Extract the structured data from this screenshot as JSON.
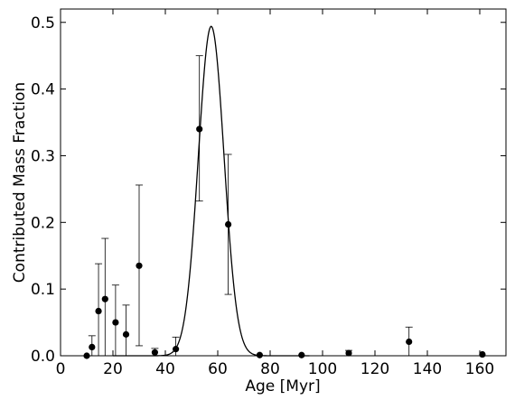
{
  "chart_data": {
    "type": "scatter",
    "xlabel": "Age [Myr]",
    "ylabel": "Contributed Mass Fraction",
    "xlim": [
      0,
      170
    ],
    "ylim": [
      0,
      0.52
    ],
    "x_ticks": [
      0,
      20,
      40,
      60,
      80,
      100,
      120,
      140,
      160
    ],
    "x_tick_labels": [
      "0",
      "20",
      "40",
      "60",
      "80",
      "100",
      "120",
      "140",
      "160"
    ],
    "y_ticks": [
      0.0,
      0.1,
      0.2,
      0.3,
      0.4,
      0.5
    ],
    "y_tick_labels": [
      "0.0",
      "0.1",
      "0.2",
      "0.3",
      "0.4",
      "0.5"
    ],
    "grid": false,
    "legend": "none",
    "colors": {
      "points": "#000000",
      "curve": "#000000",
      "axes": "#000000"
    },
    "points": [
      {
        "x": 10,
        "y": 0.0,
        "yerr_low": 0.0,
        "yerr_high": 0.0
      },
      {
        "x": 12,
        "y": 0.013,
        "yerr_low": 0.013,
        "yerr_high": 0.017
      },
      {
        "x": 14.5,
        "y": 0.067,
        "yerr_low": 0.067,
        "yerr_high": 0.071
      },
      {
        "x": 17,
        "y": 0.085,
        "yerr_low": 0.085,
        "yerr_high": 0.091
      },
      {
        "x": 21,
        "y": 0.05,
        "yerr_low": 0.05,
        "yerr_high": 0.056
      },
      {
        "x": 25,
        "y": 0.032,
        "yerr_low": 0.032,
        "yerr_high": 0.044
      },
      {
        "x": 30,
        "y": 0.135,
        "yerr_low": 0.12,
        "yerr_high": 0.121
      },
      {
        "x": 36,
        "y": 0.005,
        "yerr_low": 0.005,
        "yerr_high": 0.006
      },
      {
        "x": 44,
        "y": 0.01,
        "yerr_low": 0.01,
        "yerr_high": 0.018
      },
      {
        "x": 53,
        "y": 0.34,
        "yerr_low": 0.108,
        "yerr_high": 0.11
      },
      {
        "x": 64,
        "y": 0.197,
        "yerr_low": 0.105,
        "yerr_high": 0.105
      },
      {
        "x": 76,
        "y": 0.001,
        "yerr_low": 0.001,
        "yerr_high": 0.001
      },
      {
        "x": 92,
        "y": 0.001,
        "yerr_low": 0.001,
        "yerr_high": 0.001
      },
      {
        "x": 110,
        "y": 0.004,
        "yerr_low": 0.004,
        "yerr_high": 0.004
      },
      {
        "x": 133,
        "y": 0.021,
        "yerr_low": 0.021,
        "yerr_high": 0.022
      },
      {
        "x": 161,
        "y": 0.002,
        "yerr_low": 0.002,
        "yerr_high": 0.002
      }
    ],
    "curve": {
      "kind": "gaussian",
      "amplitude": 0.494,
      "mean": 57.5,
      "sigma": 4.9
    }
  }
}
